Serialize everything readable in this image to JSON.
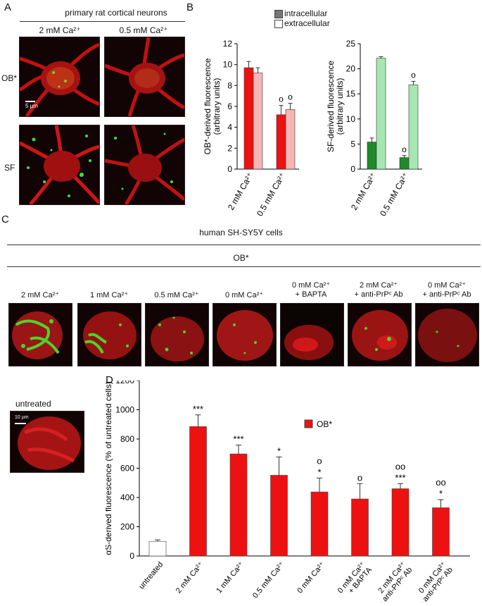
{
  "panel_letters": {
    "a": "A",
    "b": "B",
    "c": "C",
    "d": "D"
  },
  "panel_a": {
    "title": "primary rat cortical neurons",
    "col1": "2 mM Ca²⁺",
    "col2": "0.5 mM Ca²⁺",
    "row1": "OB*",
    "row2": "SF",
    "scale": "5 µm"
  },
  "panel_c": {
    "title": "human SH-SY5Y cells",
    "subtitle": "OB*",
    "cond1": "2 mM Ca²⁺",
    "cond2": "1 mM Ca²⁺",
    "cond3": "0.5 mM Ca²⁺",
    "cond4": "0 mM Ca²⁺",
    "cond5a": "0 mM Ca²⁺",
    "cond5b": "+ BAPTA",
    "cond6a": "2 mM Ca²⁺",
    "cond6b": "+ anti-PrPᶜ Ab",
    "cond7a": "0 mM Ca²⁺",
    "cond7b": "+ anti-PrPᶜ Ab",
    "untreated": "untreated",
    "scale": "10 µm"
  },
  "colors": {
    "intracellular_ob": "#ee1111",
    "extracellular_ob": "#f5b5b5",
    "intracellular_sf": "#1f8a2a",
    "extracellular_sf": "#a6e6b0",
    "ob_bar": "#ee1111",
    "untreated_bar": "#ffffff"
  },
  "chart_data": [
    {
      "type": "bar",
      "legend": {
        "intracellular": "intracellular",
        "extracellular": "extracellular"
      },
      "categories": [
        "2 mM Ca²⁺",
        "0.5 mM Ca²⁺"
      ],
      "series": [
        {
          "name": "intracellular",
          "values": [
            9.7,
            5.2
          ],
          "errors": [
            0.6,
            0.9
          ]
        },
        {
          "name": "extracellular",
          "values": [
            9.2,
            5.7
          ],
          "errors": [
            0.5,
            0.6
          ]
        }
      ],
      "annotations": [
        "",
        "",
        "o",
        "o"
      ],
      "ylabel": "OB*-derived fluorescence",
      "ylabel2": "(arbitrary units)",
      "ylim": [
        0,
        12
      ],
      "yticks": [
        0,
        2,
        4,
        6,
        8,
        10,
        12
      ]
    },
    {
      "type": "bar",
      "categories": [
        "2 mM Ca²⁺",
        "0.5 mM Ca²⁺"
      ],
      "series": [
        {
          "name": "intracellular",
          "values": [
            5.4,
            2.3
          ],
          "errors": [
            0.8,
            0.4
          ]
        },
        {
          "name": "extracellular",
          "values": [
            22.1,
            16.8
          ],
          "errors": [
            0.3,
            0.7
          ]
        }
      ],
      "annotations": [
        "",
        "",
        "o",
        "o"
      ],
      "ylabel": "SF-derived fluorescence",
      "ylabel2": "(arbitrary units)",
      "ylim": [
        0,
        25
      ],
      "yticks": [
        0,
        5,
        10,
        15,
        20,
        25
      ]
    },
    {
      "type": "bar",
      "legend": "OB*",
      "categories": [
        "untreated",
        "2 mM Ca²⁺",
        "1 mM Ca²⁺",
        "0.5 mM Ca²⁺",
        "0 mM Ca²⁺",
        "0 mM Ca²⁺ + BAPTA",
        "2 mM Ca²⁺ + anti-PrPᶜ Ab",
        "0 mM Ca²⁺ + anti-PrPᶜ Ab"
      ],
      "cat_line1": [
        "untreated",
        "2 mM Ca²⁺",
        "1 mM Ca²⁺",
        "0.5 mM Ca²⁺",
        "0 mM Ca²⁺",
        "0 mM Ca²⁺",
        "2 mM Ca²⁺",
        "0 mM Ca²⁺"
      ],
      "cat_line2": [
        "",
        "",
        "",
        "",
        "",
        "+ BAPTA",
        "+ anti-PrPᶜ Ab",
        "+ anti-PrPᶜ Ab"
      ],
      "values": [
        100,
        885,
        698,
        552,
        438,
        390,
        460,
        330
      ],
      "errors": [
        10,
        80,
        60,
        125,
        95,
        105,
        35,
        55
      ],
      "sig_top": [
        "",
        "***",
        "***",
        "*",
        "o",
        "o",
        "oo",
        "oo"
      ],
      "sig_bottom": [
        "",
        "",
        "",
        "",
        "*",
        "",
        "***",
        "*"
      ],
      "ylabel": "αS-derived fluorescence (% of untreated cells)",
      "ylim": [
        0,
        1200
      ],
      "yticks": [
        0,
        200,
        400,
        600,
        800,
        1000,
        1200
      ]
    }
  ]
}
